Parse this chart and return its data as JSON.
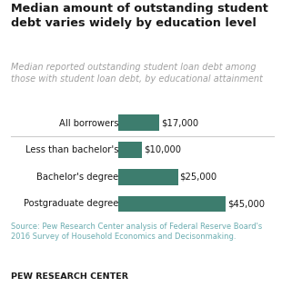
{
  "title": "Median amount of outstanding student\ndebt varies widely by education level",
  "subtitle": "Median reported outstanding student loan debt among\nthose with student loan debt, by educational attainment",
  "categories": [
    "All borrowers",
    "Less than bachelor's",
    "Bachelor's degree",
    "Postgraduate degree"
  ],
  "values": [
    17000,
    10000,
    25000,
    45000
  ],
  "labels": [
    "$17,000",
    "$10,000",
    "$25,000",
    "$45,000"
  ],
  "bar_color": "#3d7d6e",
  "title_color": "#1a1a1a",
  "subtitle_color": "#a0a0a0",
  "source_text": "Source: Pew Research Center analysis of Federal Reserve Board's\n2016 Survey of Household Economics and Decisonmaking.",
  "footer_text": "PEW RESEARCH CENTER",
  "xlim_max": 50000,
  "bg_color": "#ffffff",
  "source_color": "#6aacb0",
  "footer_color": "#1a1a1a",
  "separator_color": "#cccccc",
  "title_fontsize": 9.2,
  "subtitle_fontsize": 7.0,
  "label_fontsize": 7.2,
  "category_fontsize": 7.2,
  "source_fontsize": 6.0,
  "footer_fontsize": 6.8,
  "bar_height": 0.6
}
